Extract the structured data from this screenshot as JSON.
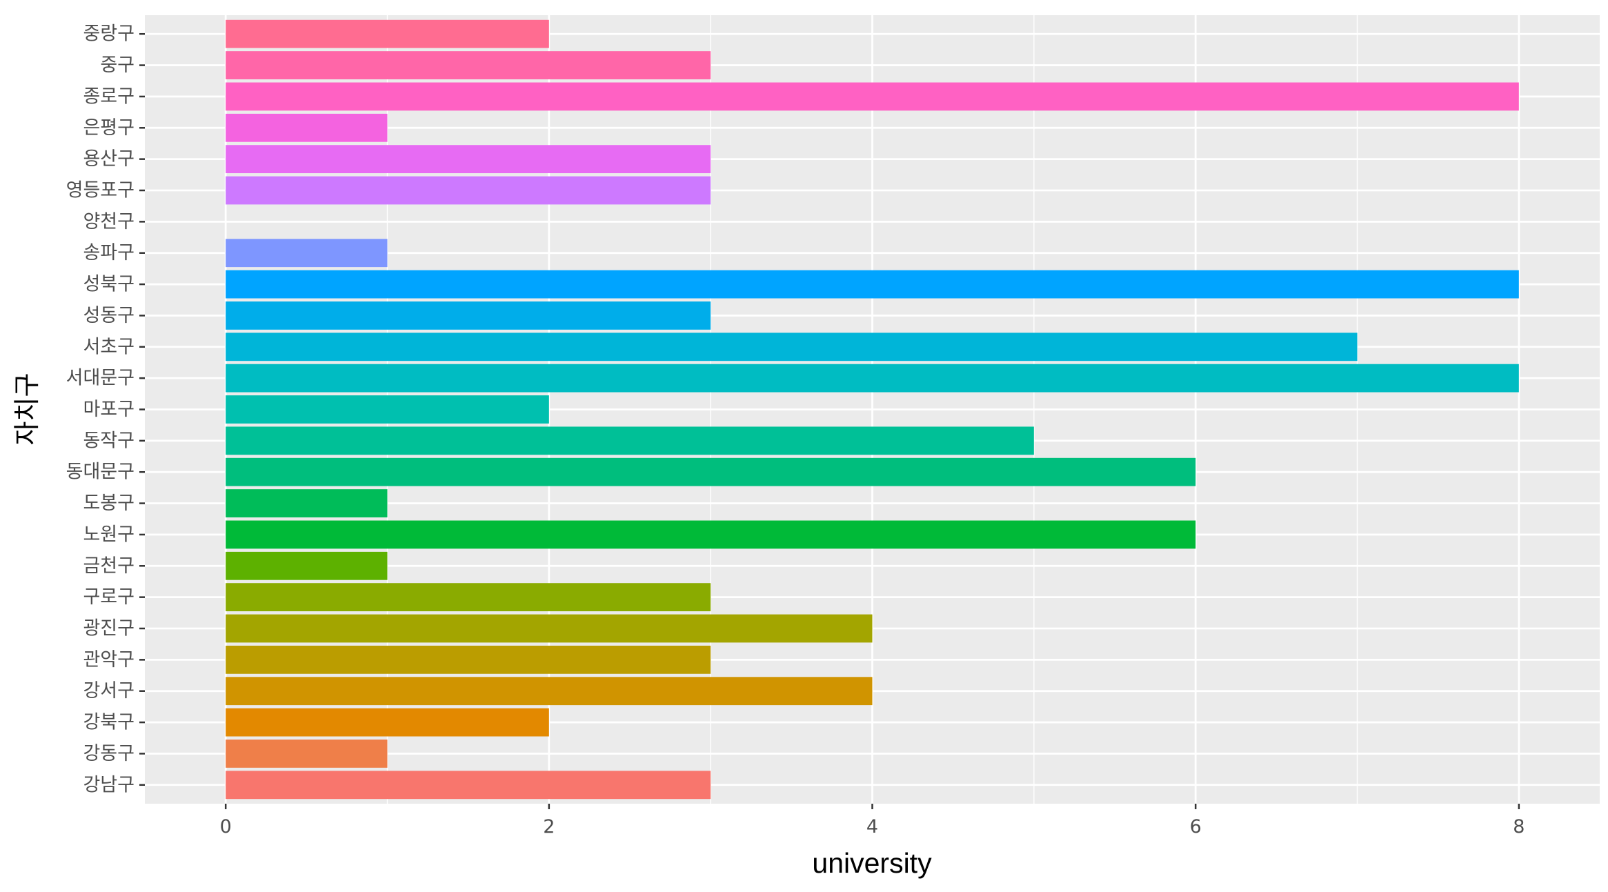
{
  "chart_data": {
    "type": "bar",
    "orientation": "horizontal",
    "xlabel": "university",
    "ylabel": "자치구",
    "xlim": [
      -0.5,
      8.5
    ],
    "xticks": [
      0,
      2,
      4,
      6,
      8
    ],
    "grid": true,
    "legend": "none",
    "panel_background": "#ebebeb",
    "categories": [
      "강남구",
      "강동구",
      "강북구",
      "강서구",
      "관악구",
      "광진구",
      "구로구",
      "금천구",
      "노원구",
      "도봉구",
      "동대문구",
      "동작구",
      "마포구",
      "서대문구",
      "서초구",
      "성동구",
      "성북구",
      "송파구",
      "양천구",
      "영등포구",
      "용산구",
      "은평구",
      "종로구",
      "중구",
      "중랑구"
    ],
    "values": [
      3,
      1,
      2,
      4,
      3,
      4,
      3,
      1,
      6,
      1,
      6,
      5,
      2,
      8,
      7,
      3,
      8,
      1,
      0,
      3,
      3,
      1,
      8,
      3,
      2
    ],
    "colors": [
      "#F8766D",
      "#EF7F49",
      "#E38900",
      "#D09400",
      "#BB9D00",
      "#A3A500",
      "#8AAB00",
      "#5DB100",
      "#00BA38",
      "#00BC59",
      "#00BE7D",
      "#00C097",
      "#00C0AF",
      "#00BCC2",
      "#00B5D8",
      "#00ADEA",
      "#00A4FF",
      "#7E96FF",
      "#A58AFF",
      "#CD79FF",
      "#E76BF3",
      "#F463E0",
      "#FF61C3",
      "#FF66A8",
      "#FF6C91"
    ]
  }
}
